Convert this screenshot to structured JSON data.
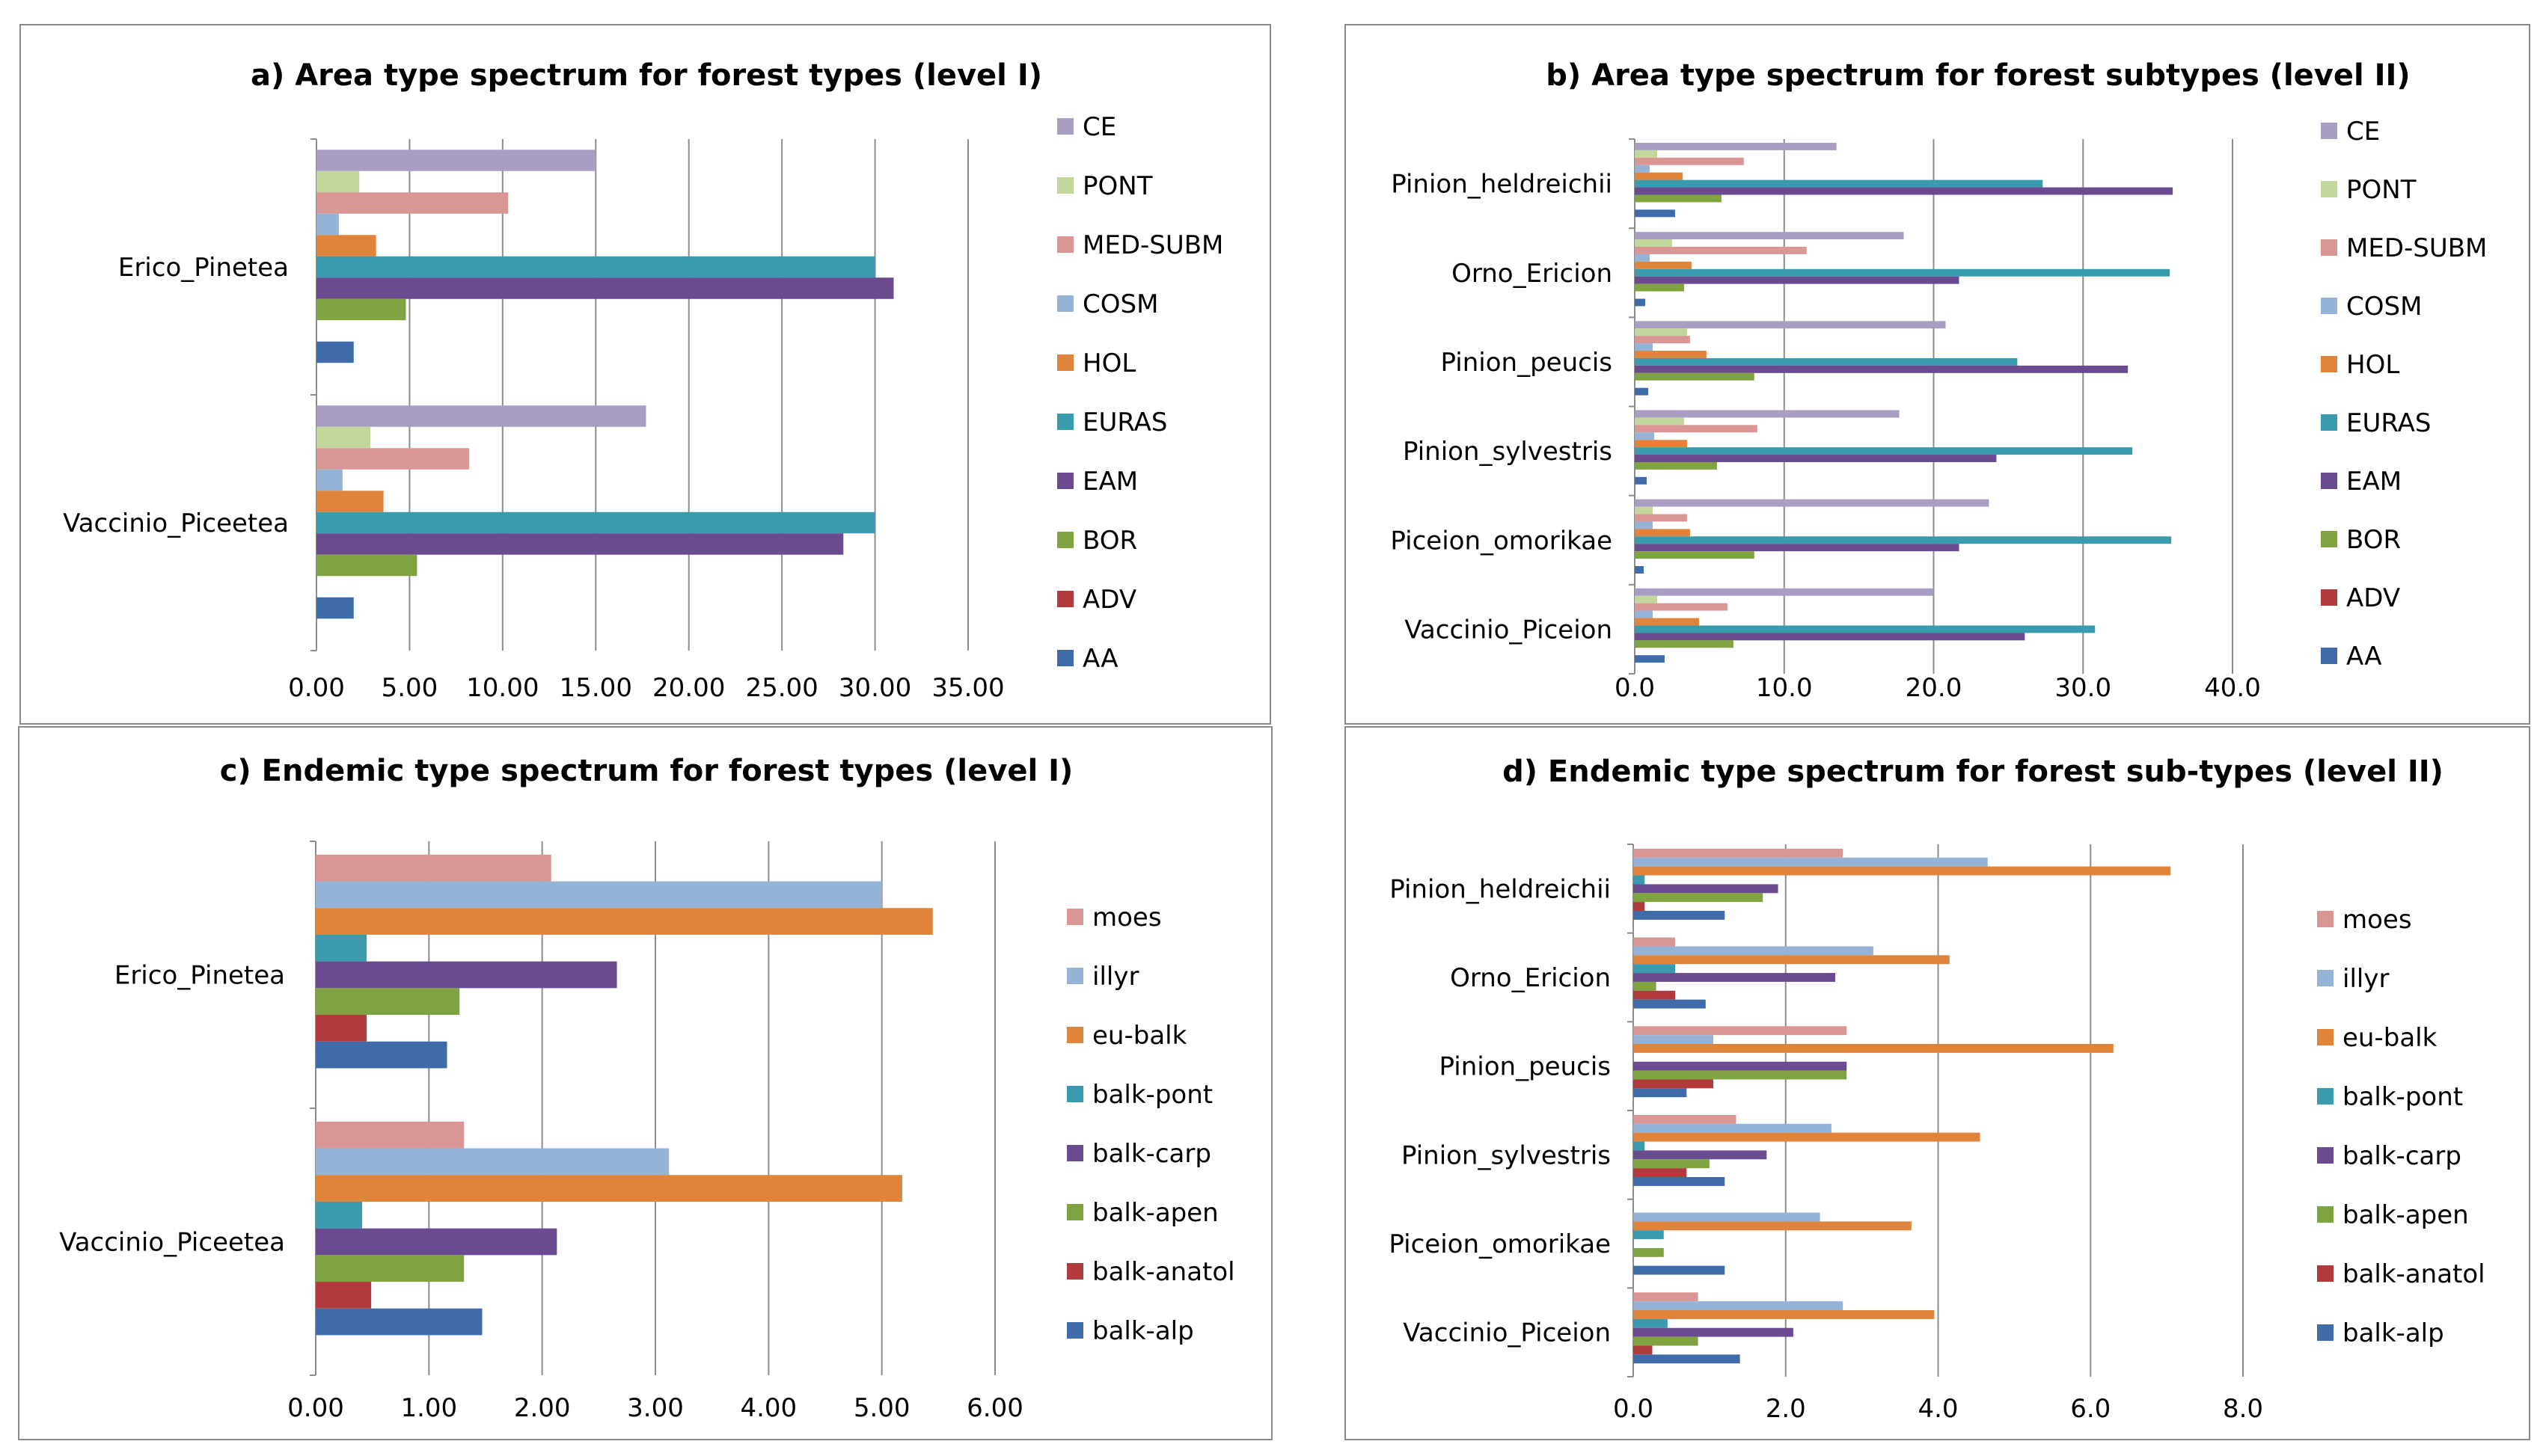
{
  "chart_data": [
    {
      "id": "a",
      "type": "bar",
      "orientation": "horizontal",
      "title": "a) Area type spectrum for forest types (level I)",
      "categories": [
        "Erico_Pinetea",
        "Vaccinio_Piceetea"
      ],
      "xlim": [
        0,
        35
      ],
      "ticks": [
        "0.00",
        "5.00",
        "10.00",
        "15.00",
        "20.00",
        "25.00",
        "30.00",
        "35.00"
      ],
      "grid": true,
      "legend_position": "right",
      "series": [
        {
          "name": "CE",
          "color": "#a99dc4",
          "values": [
            15.0,
            17.7
          ]
        },
        {
          "name": "PONT",
          "color": "#c3d69b",
          "values": [
            2.3,
            2.9
          ]
        },
        {
          "name": "MED-SUBM",
          "color": "#d99694",
          "values": [
            10.3,
            8.2
          ]
        },
        {
          "name": "COSM",
          "color": "#95b3d7",
          "values": [
            1.2,
            1.4
          ]
        },
        {
          "name": "HOL",
          "color": "#e0843c",
          "values": [
            3.2,
            3.6
          ]
        },
        {
          "name": "EURAS",
          "color": "#3a9bae",
          "values": [
            30.0,
            30.0
          ]
        },
        {
          "name": "EAM",
          "color": "#6a4b8f",
          "values": [
            31.0,
            28.3
          ]
        },
        {
          "name": "BOR",
          "color": "#7ea340",
          "values": [
            4.8,
            5.4
          ]
        },
        {
          "name": "ADV",
          "color": "#b13a3a",
          "values": [
            0.0,
            0.0
          ]
        },
        {
          "name": "AA",
          "color": "#3f6ca8",
          "values": [
            2.0,
            2.0
          ]
        }
      ]
    },
    {
      "id": "b",
      "type": "bar",
      "orientation": "horizontal",
      "title": "b) Area type spectrum for forest subtypes (level II)",
      "categories": [
        "Pinion_heldreichii",
        "Orno_Ericion",
        "Pinion_peucis",
        "Pinion_sylvestris",
        "Piceion_omorikae",
        "Vaccinio_Piceion"
      ],
      "xlim": [
        0,
        40
      ],
      "ticks": [
        "0.0",
        "10.0",
        "20.0",
        "30.0",
        "40.0"
      ],
      "grid": true,
      "legend_position": "right",
      "series": [
        {
          "name": "CE",
          "color": "#a99dc4",
          "values": [
            13.5,
            18.0,
            20.8,
            17.7,
            23.7,
            20.0
          ]
        },
        {
          "name": "PONT",
          "color": "#c3d69b",
          "values": [
            1.5,
            2.5,
            3.5,
            3.3,
            1.2,
            1.5
          ]
        },
        {
          "name": "MED-SUBM",
          "color": "#d99694",
          "values": [
            7.3,
            11.5,
            3.7,
            8.2,
            3.5,
            6.2
          ]
        },
        {
          "name": "COSM",
          "color": "#95b3d7",
          "values": [
            1.0,
            1.0,
            1.2,
            1.3,
            1.2,
            1.2
          ]
        },
        {
          "name": "HOL",
          "color": "#e0843c",
          "values": [
            3.2,
            3.8,
            4.8,
            3.5,
            3.7,
            4.3
          ]
        },
        {
          "name": "EURAS",
          "color": "#3a9bae",
          "values": [
            27.3,
            35.8,
            25.6,
            33.3,
            35.9,
            30.8
          ]
        },
        {
          "name": "EAM",
          "color": "#6a4b8f",
          "values": [
            36.0,
            21.7,
            33.0,
            24.2,
            21.7,
            26.1
          ]
        },
        {
          "name": "BOR",
          "color": "#7ea340",
          "values": [
            5.8,
            3.3,
            8.0,
            5.5,
            8.0,
            6.6
          ]
        },
        {
          "name": "ADV",
          "color": "#b13a3a",
          "values": [
            0.0,
            0.0,
            0.0,
            0.0,
            0.0,
            0.0
          ]
        },
        {
          "name": "AA",
          "color": "#3f6ca8",
          "values": [
            2.7,
            0.7,
            0.9,
            0.8,
            0.6,
            2.0
          ]
        }
      ]
    },
    {
      "id": "c",
      "type": "bar",
      "orientation": "horizontal",
      "title": "c) Endemic type spectrum for forest types (level I)",
      "categories": [
        "Erico_Pinetea",
        "Vaccinio_Piceetea"
      ],
      "xlim": [
        0,
        6
      ],
      "ticks": [
        "0.00",
        "1.00",
        "2.00",
        "3.00",
        "4.00",
        "5.00",
        "6.00"
      ],
      "grid": true,
      "legend_position": "right",
      "series": [
        {
          "name": "moes",
          "color": "#d99694",
          "values": [
            2.08,
            1.31
          ]
        },
        {
          "name": "illyr",
          "color": "#95b3d7",
          "values": [
            5.0,
            3.12
          ]
        },
        {
          "name": "eu-balk",
          "color": "#e0843c",
          "values": [
            5.45,
            5.18
          ]
        },
        {
          "name": "balk-pont",
          "color": "#3a9bae",
          "values": [
            0.45,
            0.41
          ]
        },
        {
          "name": "balk-carp",
          "color": "#6a4b8f",
          "values": [
            2.66,
            2.13
          ]
        },
        {
          "name": "balk-apen",
          "color": "#7ea340",
          "values": [
            1.27,
            1.31
          ]
        },
        {
          "name": "balk-anatol",
          "color": "#b13a3a",
          "values": [
            0.45,
            0.49
          ]
        },
        {
          "name": "balk-alp",
          "color": "#3f6ca8",
          "values": [
            1.16,
            1.47
          ]
        }
      ]
    },
    {
      "id": "d",
      "type": "bar",
      "orientation": "horizontal",
      "title": "d) Endemic type spectrum for forest sub-types (level II)",
      "categories": [
        "Pinion_heldreichii",
        "Orno_Ericion",
        "Pinion_peucis",
        "Pinion_sylvestris",
        "Piceion_omorikae",
        "Vaccinio_Piceion"
      ],
      "xlim": [
        0,
        8
      ],
      "ticks": [
        "0.0",
        "2.0",
        "4.0",
        "6.0",
        "8.0"
      ],
      "grid": true,
      "legend_position": "right",
      "series": [
        {
          "name": "moes",
          "color": "#d99694",
          "values": [
            2.75,
            0.55,
            2.8,
            1.35,
            0.0,
            0.85
          ]
        },
        {
          "name": "illyr",
          "color": "#95b3d7",
          "values": [
            4.65,
            3.15,
            1.05,
            2.6,
            2.45,
            2.75
          ]
        },
        {
          "name": "eu-balk",
          "color": "#e0843c",
          "values": [
            7.05,
            4.15,
            6.3,
            4.55,
            3.65,
            3.95
          ]
        },
        {
          "name": "balk-pont",
          "color": "#3a9bae",
          "values": [
            0.15,
            0.55,
            0.0,
            0.15,
            0.4,
            0.45
          ]
        },
        {
          "name": "balk-carp",
          "color": "#6a4b8f",
          "values": [
            1.9,
            2.65,
            2.8,
            1.75,
            0.0,
            2.1
          ]
        },
        {
          "name": "balk-apen",
          "color": "#7ea340",
          "values": [
            1.7,
            0.3,
            2.8,
            1.0,
            0.4,
            0.85
          ]
        },
        {
          "name": "balk-anatol",
          "color": "#b13a3a",
          "values": [
            0.15,
            0.55,
            1.05,
            0.7,
            0.0,
            0.25
          ]
        },
        {
          "name": "balk-alp",
          "color": "#3f6ca8",
          "values": [
            1.2,
            0.95,
            0.7,
            1.2,
            1.2,
            1.4
          ]
        }
      ]
    }
  ]
}
